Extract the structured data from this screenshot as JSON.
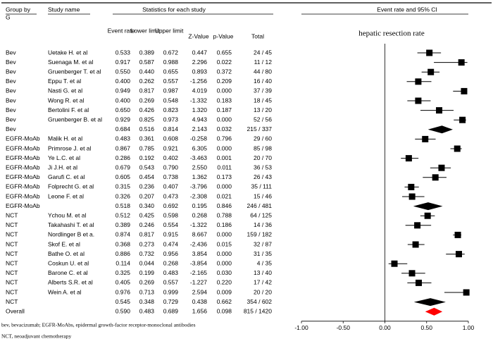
{
  "chart_data": {
    "type": "forest",
    "headers": {
      "group": "Group by",
      "group_sub": "G",
      "study": "Study name",
      "stats": "Statistics for each study",
      "rate": "Event rate",
      "lower": "Lower limit",
      "upper": "Upper limit",
      "z": "Z-Value",
      "p": "p-Value",
      "total": "Total",
      "plot": "Event rate and 95% CI"
    },
    "annotation": "hepatic resection rate",
    "xlim": [
      -1,
      1
    ],
    "xticks": [
      {
        "value": -1,
        "label": "-1.00"
      },
      {
        "value": -0.5,
        "label": "-0.50"
      },
      {
        "value": 0,
        "label": "0.00"
      },
      {
        "value": 0.5,
        "label": "0.50"
      },
      {
        "value": 1,
        "label": "1.00"
      }
    ],
    "marker_color": "#000000",
    "overall_color": "#ff0000",
    "rows": [
      {
        "group": "Bev",
        "study": "Uetake H. et al",
        "kind": "study",
        "estimate": 0.533,
        "lower": 0.389,
        "upper": 0.672,
        "value_labels": [
          "0.533",
          "0.389",
          "0.672",
          "0.447",
          "0.655",
          "24 / 45"
        ]
      },
      {
        "group": "Bev",
        "study": "Suenaga M. et al",
        "kind": "study",
        "estimate": 0.917,
        "lower": 0.587,
        "upper": 0.988,
        "value_labels": [
          "0.917",
          "0.587",
          "0.988",
          "2.296",
          "0.022",
          "11 / 12"
        ]
      },
      {
        "group": "Bev",
        "study": "Gruenberger T. et al",
        "kind": "study",
        "estimate": 0.55,
        "lower": 0.44,
        "upper": 0.655,
        "value_labels": [
          "0.550",
          "0.440",
          "0.655",
          "0.893",
          "0.372",
          "44 / 80"
        ]
      },
      {
        "group": "Bev",
        "study": "Eppu T. et al",
        "kind": "study",
        "estimate": 0.4,
        "lower": 0.262,
        "upper": 0.557,
        "value_labels": [
          "0.400",
          "0.262",
          "0.557",
          "-1.256",
          "0.209",
          "16 / 40"
        ]
      },
      {
        "group": "Bev",
        "study": "Nasti G. et al",
        "kind": "study",
        "estimate": 0.949,
        "lower": 0.817,
        "upper": 0.987,
        "value_labels": [
          "0.949",
          "0.817",
          "0.987",
          "4.019",
          "0.000",
          "37 / 39"
        ]
      },
      {
        "group": "Bev",
        "study": "Wong R. et al",
        "kind": "study",
        "estimate": 0.4,
        "lower": 0.269,
        "upper": 0.548,
        "value_labels": [
          "0.400",
          "0.269",
          "0.548",
          "-1.332",
          "0.183",
          "18 / 45"
        ]
      },
      {
        "group": "Bev",
        "study": "Bertolini F. et al",
        "kind": "study",
        "estimate": 0.65,
        "lower": 0.426,
        "upper": 0.823,
        "value_labels": [
          "0.650",
          "0.426",
          "0.823",
          "1.320",
          "0.187",
          "13 / 20"
        ]
      },
      {
        "group": "Bev",
        "study": "Gruenberger B. et al",
        "kind": "study",
        "estimate": 0.929,
        "lower": 0.825,
        "upper": 0.973,
        "value_labels": [
          "0.929",
          "0.825",
          "0.973",
          "4.943",
          "0.000",
          "52 / 56"
        ]
      },
      {
        "group": "Bev",
        "kind": "subtotal",
        "estimate": 0.684,
        "lower": 0.516,
        "upper": 0.814,
        "value_labels": [
          "0.684",
          "0.516",
          "0.814",
          "2.143",
          "0.032",
          "215 / 337"
        ]
      },
      {
        "group": "EGFR-MoAb",
        "study": "Malik H. et al",
        "kind": "study",
        "estimate": 0.483,
        "lower": 0.361,
        "upper": 0.608,
        "value_labels": [
          "0.483",
          "0.361",
          "0.608",
          "-0.258",
          "0.796",
          "29 / 60"
        ]
      },
      {
        "group": "EGFR-MoAb",
        "study": "Primrose J. et al",
        "kind": "study",
        "estimate": 0.867,
        "lower": 0.785,
        "upper": 0.921,
        "value_labels": [
          "0.867",
          "0.785",
          "0.921",
          "6.305",
          "0.000",
          "85 / 98"
        ]
      },
      {
        "group": "EGFR-MoAb",
        "study": "Ye L.C. et al",
        "kind": "study",
        "estimate": 0.286,
        "lower": 0.192,
        "upper": 0.402,
        "value_labels": [
          "0.286",
          "0.192",
          "0.402",
          "-3.463",
          "0.001",
          "20 / 70"
        ]
      },
      {
        "group": "EGFR-MoAb",
        "study": "Ji J.H. et al",
        "kind": "study",
        "estimate": 0.679,
        "lower": 0.543,
        "upper": 0.79,
        "value_labels": [
          "0.679",
          "0.543",
          "0.790",
          "2.550",
          "0.011",
          "36 / 53"
        ]
      },
      {
        "group": "EGFR-MoAb",
        "study": "Garufi C. et al",
        "kind": "study",
        "estimate": 0.605,
        "lower": 0.454,
        "upper": 0.738,
        "value_labels": [
          "0.605",
          "0.454",
          "0.738",
          "1.362",
          "0.173",
          "26 / 43"
        ]
      },
      {
        "group": "EGFR-MoAb",
        "study": "Folprecht G. et al",
        "kind": "study",
        "estimate": 0.315,
        "lower": 0.236,
        "upper": 0.407,
        "value_labels": [
          "0.315",
          "0.236",
          "0.407",
          "-3.796",
          "0.000",
          "35 / 111"
        ]
      },
      {
        "group": "EGFR-MoAb",
        "study": "Leone F. et al",
        "kind": "study",
        "estimate": 0.326,
        "lower": 0.207,
        "upper": 0.473,
        "value_labels": [
          "0.326",
          "0.207",
          "0.473",
          "-2.308",
          "0.021",
          "15 / 46"
        ]
      },
      {
        "group": "EGFR-MoAb",
        "kind": "subtotal",
        "estimate": 0.518,
        "lower": 0.34,
        "upper": 0.692,
        "value_labels": [
          "0.518",
          "0.340",
          "0.692",
          "0.195",
          "0.846",
          "246 / 481"
        ]
      },
      {
        "group": "NCT",
        "study": "Ychou M. et al",
        "kind": "study",
        "estimate": 0.512,
        "lower": 0.425,
        "upper": 0.598,
        "value_labels": [
          "0.512",
          "0.425",
          "0.598",
          "0.268",
          "0.788",
          "64 / 125"
        ]
      },
      {
        "group": "NCT",
        "study": "Takahashi T. et al",
        "kind": "study",
        "estimate": 0.389,
        "lower": 0.246,
        "upper": 0.554,
        "value_labels": [
          "0.389",
          "0.246",
          "0.554",
          "-1.322",
          "0.186",
          "14 / 36"
        ]
      },
      {
        "group": "NCT",
        "study": "Nordlinger B et a.",
        "kind": "study",
        "estimate": 0.874,
        "lower": 0.817,
        "upper": 0.915,
        "value_labels": [
          "0.874",
          "0.817",
          "0.915",
          "8.667",
          "0.000",
          "159 / 182"
        ]
      },
      {
        "group": "NCT",
        "study": "Skof E. et al",
        "kind": "study",
        "estimate": 0.368,
        "lower": 0.273,
        "upper": 0.474,
        "value_labels": [
          "0.368",
          "0.273",
          "0.474",
          "-2.436",
          "0.015",
          "32 / 87"
        ]
      },
      {
        "group": "NCT",
        "study": "Bathe O. et al",
        "kind": "study",
        "estimate": 0.886,
        "lower": 0.732,
        "upper": 0.956,
        "value_labels": [
          "0.886",
          "0.732",
          "0.956",
          "3.854",
          "0.000",
          "31 / 35"
        ]
      },
      {
        "group": "NCT",
        "study": "Coskun U. et al",
        "kind": "study",
        "estimate": 0.114,
        "lower": 0.044,
        "upper": 0.268,
        "value_labels": [
          "0.114",
          "0.044",
          "0.268",
          "-3.854",
          "0.000",
          "4 / 35"
        ]
      },
      {
        "group": "NCT",
        "study": "Barone C. et al",
        "kind": "study",
        "estimate": 0.325,
        "lower": 0.199,
        "upper": 0.483,
        "value_labels": [
          "0.325",
          "0.199",
          "0.483",
          "-2.165",
          "0.030",
          "13 / 40"
        ]
      },
      {
        "group": "NCT",
        "study": "Alberts S.R. et al",
        "kind": "study",
        "estimate": 0.405,
        "lower": 0.269,
        "upper": 0.557,
        "value_labels": [
          "0.405",
          "0.269",
          "0.557",
          "-1.227",
          "0.220",
          "17 / 42"
        ]
      },
      {
        "group": "NCT",
        "study": "Wein A. et al",
        "kind": "study",
        "estimate": 0.976,
        "lower": 0.713,
        "upper": 0.999,
        "value_labels": [
          "0.976",
          "0.713",
          "0.999",
          "2.594",
          "0.009",
          "20 / 20"
        ]
      },
      {
        "group": "NCT",
        "kind": "subtotal",
        "estimate": 0.545,
        "lower": 0.348,
        "upper": 0.729,
        "value_labels": [
          "0.545",
          "0.348",
          "0.729",
          "0.438",
          "0.662",
          "354 / 602"
        ]
      },
      {
        "group": "Overall",
        "kind": "overall",
        "estimate": 0.59,
        "lower": 0.483,
        "upper": 0.689,
        "value_labels": [
          "0.590",
          "0.483",
          "0.689",
          "1.656",
          "0.098",
          "815 / 1420"
        ]
      }
    ],
    "footnotes": [
      "bev, bevacizumab; EGFR-MoAbs, epidermal growth-factor receptor-monoclonal antibodies",
      "NCT, neoadjuvant chemotherapy"
    ]
  }
}
